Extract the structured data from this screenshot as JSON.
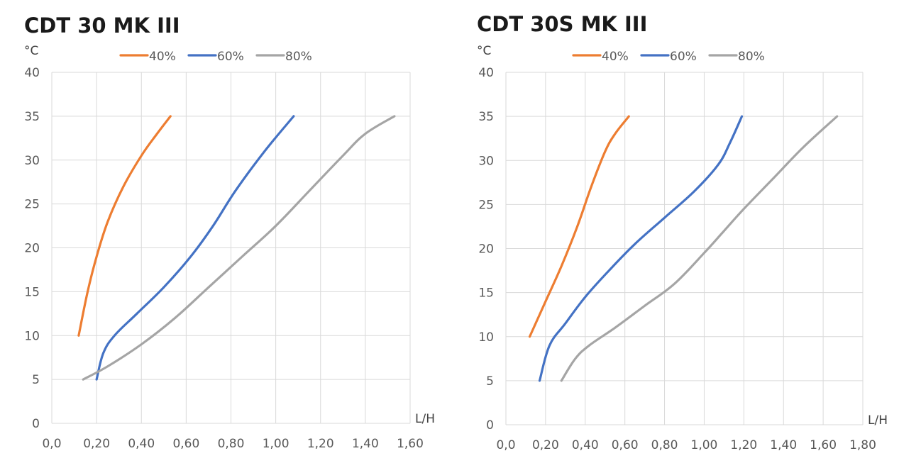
{
  "colors": {
    "c40": "#ED7D31",
    "c60": "#4472C4",
    "c80": "#A5A5A5",
    "grid": "#D9D9D9",
    "text": "#595959"
  },
  "chart_data": [
    {
      "type": "line",
      "title": "CDT 30 MK III",
      "ylabel": "°C",
      "xlabel": "L/H",
      "xlim": [
        0,
        1.6
      ],
      "ylim": [
        0,
        40
      ],
      "xticks": [
        0,
        0.2,
        0.4,
        0.6,
        0.8,
        1.0,
        1.2,
        1.4,
        1.6
      ],
      "xtick_labels": [
        "0,0",
        "0,20",
        "0,40",
        "0,60",
        "0,80",
        "1,00",
        "1,20",
        "1,40",
        "1,60"
      ],
      "yticks": [
        0,
        5,
        10,
        15,
        20,
        25,
        30,
        35,
        40
      ],
      "ytick_labels": [
        "0",
        "5",
        "10",
        "15",
        "20",
        "25",
        "30",
        "35",
        "40"
      ],
      "legend_position": "top",
      "series": [
        {
          "name": "40%",
          "color": "#ED7D31",
          "points": [
            [
              0.12,
              10
            ],
            [
              0.16,
              15
            ],
            [
              0.2,
              19
            ],
            [
              0.25,
              23
            ],
            [
              0.32,
              27
            ],
            [
              0.4,
              30.5
            ],
            [
              0.47,
              33
            ],
            [
              0.53,
              35
            ]
          ]
        },
        {
          "name": "60%",
          "color": "#4472C4",
          "points": [
            [
              0.2,
              5
            ],
            [
              0.23,
              8
            ],
            [
              0.28,
              10
            ],
            [
              0.38,
              12.5
            ],
            [
              0.5,
              15.5
            ],
            [
              0.62,
              19
            ],
            [
              0.72,
              22.5
            ],
            [
              0.82,
              26.5
            ],
            [
              0.95,
              31
            ],
            [
              1.08,
              35
            ]
          ]
        },
        {
          "name": "80%",
          "color": "#A5A5A5",
          "points": [
            [
              0.14,
              5
            ],
            [
              0.25,
              6.5
            ],
            [
              0.4,
              9
            ],
            [
              0.55,
              12
            ],
            [
              0.7,
              15.5
            ],
            [
              0.85,
              19
            ],
            [
              1.0,
              22.5
            ],
            [
              1.15,
              26.5
            ],
            [
              1.3,
              30.5
            ],
            [
              1.4,
              33
            ],
            [
              1.53,
              35
            ]
          ]
        }
      ]
    },
    {
      "type": "line",
      "title": "CDT 30S MK III",
      "ylabel": "°C",
      "xlabel": "L/H",
      "xlim": [
        0,
        1.8
      ],
      "ylim": [
        0,
        40
      ],
      "xticks": [
        0,
        0.2,
        0.4,
        0.6,
        0.8,
        1.0,
        1.2,
        1.4,
        1.6,
        1.8
      ],
      "xtick_labels": [
        "0,0",
        "0,20",
        "0,40",
        "0,60",
        "0,80",
        "1,00",
        "1,20",
        "1,40",
        "1,60",
        "1,80"
      ],
      "yticks": [
        0,
        5,
        10,
        15,
        20,
        25,
        30,
        35,
        40
      ],
      "ytick_labels": [
        "0",
        "5",
        "10",
        "15",
        "20",
        "25",
        "30",
        "35",
        "40"
      ],
      "legend_position": "top",
      "series": [
        {
          "name": "40%",
          "color": "#ED7D31",
          "points": [
            [
              0.12,
              10
            ],
            [
              0.2,
              14
            ],
            [
              0.28,
              18
            ],
            [
              0.36,
              22.5
            ],
            [
              0.43,
              27
            ],
            [
              0.5,
              31
            ],
            [
              0.55,
              33
            ],
            [
              0.62,
              35
            ]
          ]
        },
        {
          "name": "60%",
          "color": "#4472C4",
          "points": [
            [
              0.17,
              5
            ],
            [
              0.22,
              9
            ],
            [
              0.3,
              11.5
            ],
            [
              0.4,
              14.5
            ],
            [
              0.52,
              17.5
            ],
            [
              0.65,
              20.5
            ],
            [
              0.8,
              23.5
            ],
            [
              0.95,
              26.5
            ],
            [
              1.07,
              29.5
            ],
            [
              1.13,
              32
            ],
            [
              1.19,
              35
            ]
          ]
        },
        {
          "name": "80%",
          "color": "#A5A5A5",
          "points": [
            [
              0.28,
              5
            ],
            [
              0.35,
              7.5
            ],
            [
              0.42,
              9
            ],
            [
              0.55,
              11
            ],
            [
              0.7,
              13.5
            ],
            [
              0.85,
              16
            ],
            [
              1.0,
              19.5
            ],
            [
              1.1,
              22
            ],
            [
              1.2,
              24.5
            ],
            [
              1.35,
              28
            ],
            [
              1.5,
              31.5
            ],
            [
              1.67,
              35
            ]
          ]
        }
      ]
    }
  ]
}
